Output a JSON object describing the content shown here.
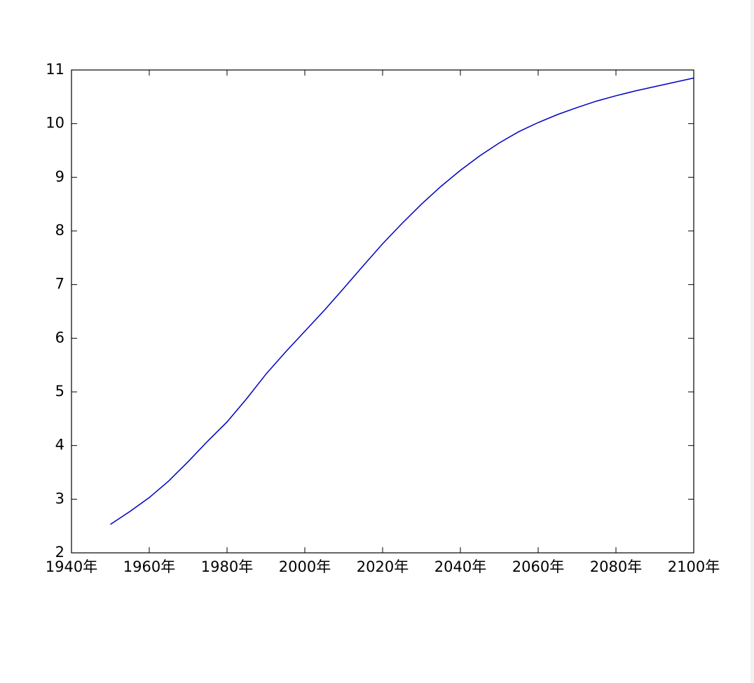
{
  "chart_data": {
    "type": "line",
    "x": [
      1950,
      1955,
      1960,
      1965,
      1970,
      1975,
      1980,
      1985,
      1990,
      1995,
      2000,
      2005,
      2010,
      2015,
      2020,
      2025,
      2030,
      2035,
      2040,
      2045,
      2050,
      2055,
      2060,
      2065,
      2070,
      2075,
      2080,
      2085,
      2090,
      2095,
      2100
    ],
    "series": [
      {
        "name": null,
        "color": "#0000bf",
        "values": [
          2.53,
          2.77,
          3.03,
          3.34,
          3.7,
          4.08,
          4.44,
          4.87,
          5.33,
          5.74,
          6.13,
          6.52,
          6.93,
          7.35,
          7.76,
          8.14,
          8.5,
          8.83,
          9.13,
          9.4,
          9.64,
          9.85,
          10.02,
          10.17,
          10.3,
          10.42,
          10.52,
          10.61,
          10.69,
          10.77,
          10.85
        ]
      }
    ],
    "xlim": [
      1940,
      2100
    ],
    "xticks": [
      {
        "value": 1940,
        "label": "1940年"
      },
      {
        "value": 1960,
        "label": "1960年"
      },
      {
        "value": 1980,
        "label": "1980年"
      },
      {
        "value": 2000,
        "label": "2000年"
      },
      {
        "value": 2020,
        "label": "2020年"
      },
      {
        "value": 2040,
        "label": "2040年"
      },
      {
        "value": 2060,
        "label": "2060年"
      },
      {
        "value": 2080,
        "label": "2080年"
      },
      {
        "value": 2100,
        "label": "2100年"
      }
    ],
    "ylim": [
      2,
      11
    ],
    "yticks": [
      2,
      3,
      4,
      5,
      6,
      7,
      8,
      9,
      10,
      11
    ],
    "grid": false
  }
}
